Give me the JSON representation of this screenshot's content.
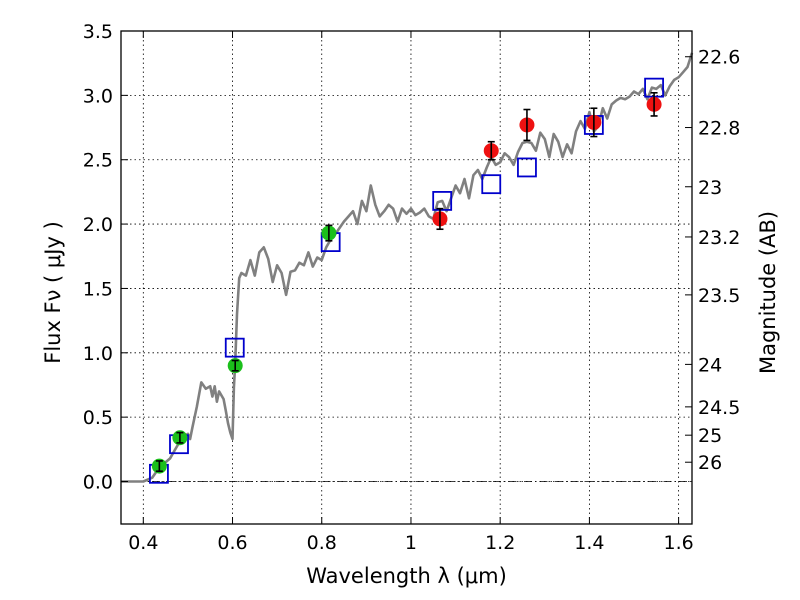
{
  "chart_data": {
    "type": "scatter",
    "xlabel": "Wavelength  λ (μm)",
    "ylabel": "Flux  Fν  ( μJy )",
    "y2label": "Magnitude (AB)",
    "xlim": [
      0.35,
      1.63
    ],
    "ylim": [
      -0.33,
      3.5
    ],
    "grid": true,
    "x_ticks": [
      0.4,
      0.6,
      0.8,
      1.0,
      1.2,
      1.4,
      1.6
    ],
    "x_tick_labels": [
      "0.4",
      "0.6",
      "0.8",
      "1",
      "1.2",
      "1.4",
      "1.6"
    ],
    "y_ticks": [
      0.0,
      0.5,
      1.0,
      1.5,
      2.0,
      2.5,
      3.0,
      3.5
    ],
    "y_tick_labels": [
      "0.0",
      "0.5",
      "1.0",
      "1.5",
      "2.0",
      "2.5",
      "3.0",
      "3.5"
    ],
    "y2_ticks": [
      {
        "label": "22.6",
        "flux": 3.3
      },
      {
        "label": "22.8",
        "flux": 2.75
      },
      {
        "label": "23",
        "flux": 2.29
      },
      {
        "label": "23.2",
        "flux": 1.9
      },
      {
        "label": "23.5",
        "flux": 1.45
      },
      {
        "label": "24",
        "flux": 0.91
      },
      {
        "label": "24.5",
        "flux": 0.58
      },
      {
        "label": "25",
        "flux": 0.36
      },
      {
        "label": "26",
        "flux": 0.15
      }
    ],
    "colors": {
      "model": "#808080",
      "green": "#1bbf1b",
      "red": "#ee1111",
      "boxes": "#0000cc",
      "error": "#000000"
    },
    "series": [
      {
        "name": "SED model",
        "kind": "line",
        "x": [
          0.35,
          0.4,
          0.42,
          0.43,
          0.44,
          0.46,
          0.47,
          0.48,
          0.49,
          0.5,
          0.505,
          0.51,
          0.52,
          0.53,
          0.54,
          0.55,
          0.555,
          0.56,
          0.565,
          0.57,
          0.58,
          0.585,
          0.59,
          0.595,
          0.6,
          0.603,
          0.606,
          0.61,
          0.615,
          0.62,
          0.63,
          0.64,
          0.65,
          0.66,
          0.67,
          0.68,
          0.69,
          0.7,
          0.71,
          0.72,
          0.73,
          0.74,
          0.75,
          0.76,
          0.77,
          0.78,
          0.79,
          0.8,
          0.81,
          0.82,
          0.83,
          0.84,
          0.85,
          0.86,
          0.87,
          0.88,
          0.89,
          0.9,
          0.91,
          0.92,
          0.93,
          0.94,
          0.95,
          0.96,
          0.97,
          0.98,
          0.99,
          1.0,
          1.01,
          1.02,
          1.03,
          1.04,
          1.05,
          1.06,
          1.07,
          1.08,
          1.09,
          1.1,
          1.11,
          1.12,
          1.13,
          1.14,
          1.15,
          1.16,
          1.17,
          1.18,
          1.19,
          1.2,
          1.21,
          1.22,
          1.23,
          1.24,
          1.25,
          1.26,
          1.27,
          1.28,
          1.29,
          1.3,
          1.31,
          1.32,
          1.33,
          1.34,
          1.35,
          1.36,
          1.37,
          1.38,
          1.39,
          1.4,
          1.41,
          1.42,
          1.43,
          1.44,
          1.45,
          1.46,
          1.47,
          1.48,
          1.49,
          1.5,
          1.51,
          1.52,
          1.53,
          1.54,
          1.55,
          1.56,
          1.57,
          1.58,
          1.59,
          1.6,
          1.61,
          1.62,
          1.63
        ],
        "y": [
          0.0,
          0.0,
          0.03,
          0.08,
          0.12,
          0.18,
          0.24,
          0.3,
          0.35,
          0.37,
          0.33,
          0.42,
          0.58,
          0.77,
          0.72,
          0.74,
          0.66,
          0.74,
          0.62,
          0.7,
          0.64,
          0.55,
          0.45,
          0.38,
          0.33,
          0.73,
          0.92,
          1.3,
          1.58,
          1.62,
          1.6,
          1.72,
          1.6,
          1.78,
          1.82,
          1.73,
          1.55,
          1.68,
          1.62,
          1.45,
          1.63,
          1.64,
          1.7,
          1.68,
          1.78,
          1.67,
          1.74,
          1.72,
          1.82,
          1.88,
          1.92,
          1.97,
          2.02,
          2.06,
          2.1,
          2.0,
          2.18,
          2.1,
          2.3,
          2.15,
          2.06,
          2.1,
          2.15,
          2.12,
          2.02,
          2.12,
          2.08,
          2.12,
          2.07,
          2.09,
          2.12,
          2.06,
          2.04,
          2.17,
          2.18,
          2.1,
          2.2,
          2.3,
          2.24,
          2.35,
          2.2,
          2.38,
          2.42,
          2.35,
          2.44,
          2.52,
          2.46,
          2.48,
          2.55,
          2.52,
          2.46,
          2.56,
          2.63,
          2.64,
          2.63,
          2.57,
          2.71,
          2.66,
          2.52,
          2.7,
          2.64,
          2.52,
          2.62,
          2.55,
          2.72,
          2.8,
          2.74,
          2.87,
          2.72,
          2.76,
          2.9,
          2.82,
          2.93,
          2.96,
          2.98,
          2.97,
          2.99,
          3.03,
          3.01,
          3.05,
          2.97,
          3.06,
          3.05,
          3.08,
          3.0,
          3.07,
          3.12,
          3.14,
          3.18,
          3.22,
          3.33
        ],
        "color": "#808080"
      },
      {
        "name": "Green points",
        "kind": "points-with-errorbars",
        "x": [
          0.436,
          0.482,
          0.606,
          0.816
        ],
        "y": [
          0.12,
          0.34,
          0.9,
          1.93
        ],
        "yerr": [
          0.04,
          0.04,
          0.04,
          0.06
        ],
        "color": "#1bbf1b"
      },
      {
        "name": "Red points",
        "kind": "points-with-errorbars",
        "x": [
          1.065,
          1.18,
          1.26,
          1.41,
          1.545
        ],
        "y": [
          2.04,
          2.57,
          2.77,
          2.79,
          2.93
        ],
        "yerr": [
          0.08,
          0.07,
          0.12,
          0.11,
          0.09
        ],
        "color": "#ee1111"
      },
      {
        "name": "Blue boxes",
        "kind": "open-squares",
        "x": [
          0.435,
          0.48,
          0.605,
          0.82,
          1.07,
          1.18,
          1.26,
          1.41,
          1.545
        ],
        "y": [
          0.06,
          0.29,
          1.04,
          1.86,
          2.18,
          2.31,
          2.44,
          2.77,
          3.06
        ],
        "color": "#0000cc"
      }
    ]
  }
}
